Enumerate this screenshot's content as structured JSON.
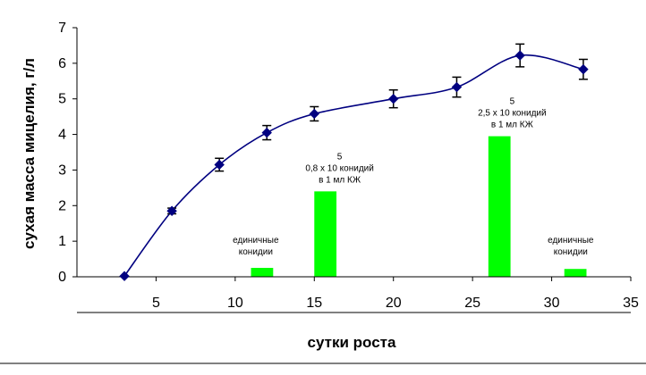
{
  "chart_data": {
    "type": "line",
    "xlabel": "сутки роста",
    "ylabel": "сухая масса мицелия, г/л",
    "xlim": [
      0,
      35
    ],
    "ylim": [
      0,
      7
    ],
    "x_ticks": [
      5,
      10,
      15,
      20,
      25,
      30,
      35
    ],
    "y_ticks": [
      0,
      1,
      2,
      3,
      4,
      5,
      6,
      7
    ],
    "grid": false,
    "legend": "none",
    "series": [
      {
        "type": "line",
        "color": "#000080",
        "x": [
          3,
          6,
          9,
          12,
          15,
          20,
          24,
          28,
          32
        ],
        "y": [
          0.02,
          1.85,
          3.15,
          4.05,
          4.58,
          5.0,
          5.33,
          6.22,
          5.83
        ],
        "error": [
          0,
          0.08,
          0.18,
          0.2,
          0.2,
          0.25,
          0.28,
          0.32,
          0.28
        ]
      }
    ],
    "bars": [
      {
        "x_start": 11,
        "x_end": 12.4,
        "value": 0.25,
        "color": "#00ff00"
      },
      {
        "x_start": 15,
        "x_end": 16.4,
        "value": 2.4,
        "color": "#00ff00"
      },
      {
        "x_start": 26,
        "x_end": 27.4,
        "value": 3.95,
        "color": "#00ff00"
      },
      {
        "x_start": 30.8,
        "x_end": 32.2,
        "value": 0.22,
        "color": "#00ff00"
      }
    ],
    "annotations": [
      {
        "lines": [
          "единичные",
          "конидии"
        ],
        "x": 11.3,
        "y": 0.95
      },
      {
        "lines": [
          "5",
          "0,8 x 10 конидий",
          "в 1 мл КЖ"
        ],
        "x": 16.6,
        "y": 3.3
      },
      {
        "lines": [
          "5",
          "2,5 x 10 конидий",
          "в 1 мл КЖ"
        ],
        "x": 27.5,
        "y": 4.85
      },
      {
        "lines": [
          "единичные",
          "конидии"
        ],
        "x": 31.2,
        "y": 0.95
      }
    ]
  }
}
